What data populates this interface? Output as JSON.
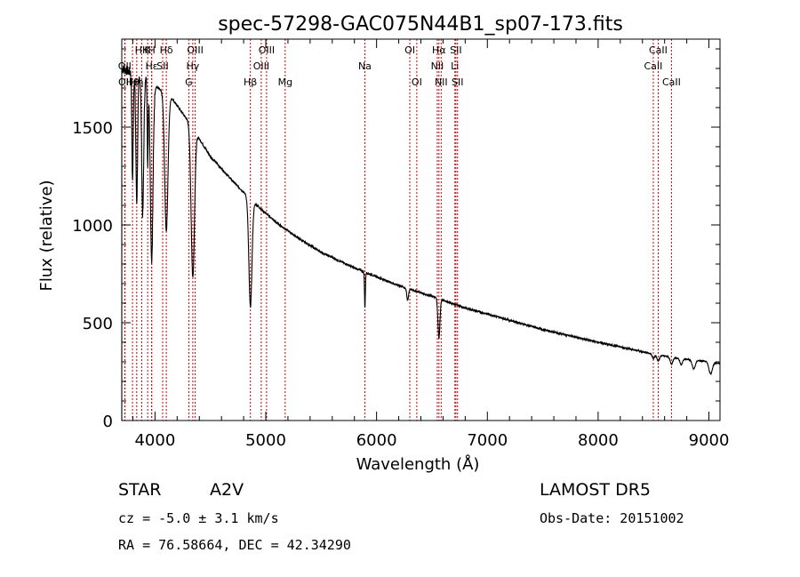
{
  "chart_data": {
    "type": "line",
    "title": "spec-57298-GAC075N44B1_sp07-173.fits",
    "xlabel": "Wavelength (Å)",
    "ylabel": "Flux (relative)",
    "xlim": [
      3700,
      9100
    ],
    "ylim": [
      0,
      1950
    ],
    "x_ticks": [
      4000,
      5000,
      6000,
      7000,
      8000,
      9000
    ],
    "y_ticks": [
      0,
      500,
      1000,
      1500
    ],
    "grid": false,
    "spectrum": {
      "continuum_anchors": [
        [
          3700,
          1800
        ],
        [
          3900,
          1750
        ],
        [
          4150,
          1650
        ],
        [
          4300,
          1530
        ],
        [
          4500,
          1350
        ],
        [
          4700,
          1225
        ],
        [
          4900,
          1110
        ],
        [
          5100,
          1010
        ],
        [
          5300,
          930
        ],
        [
          5500,
          860
        ],
        [
          5800,
          780
        ],
        [
          6000,
          735
        ],
        [
          6200,
          690
        ],
        [
          6500,
          635
        ],
        [
          6800,
          575
        ],
        [
          7000,
          545
        ],
        [
          7500,
          465
        ],
        [
          8000,
          400
        ],
        [
          8500,
          340
        ],
        [
          8700,
          320
        ],
        [
          9000,
          300
        ],
        [
          9100,
          290
        ]
      ],
      "absorption_lines": [
        {
          "center": 3797,
          "depth": 550,
          "width": 6
        },
        {
          "center": 3835,
          "depth": 650,
          "width": 8
        },
        {
          "center": 3889,
          "depth": 700,
          "width": 9
        },
        {
          "center": 3934,
          "depth": 450,
          "width": 4
        },
        {
          "center": 3970,
          "depth": 900,
          "width": 12
        },
        {
          "center": 4102,
          "depth": 700,
          "width": 15
        },
        {
          "center": 4341,
          "depth": 760,
          "width": 15
        },
        {
          "center": 4861,
          "depth": 550,
          "width": 14
        },
        {
          "center": 5895,
          "depth": 180,
          "width": 4
        },
        {
          "center": 6280,
          "depth": 60,
          "width": 8
        },
        {
          "center": 6563,
          "depth": 200,
          "width": 9
        },
        {
          "center": 8498,
          "depth": 25,
          "width": 10
        },
        {
          "center": 8542,
          "depth": 30,
          "width": 12
        },
        {
          "center": 8662,
          "depth": 35,
          "width": 12
        },
        {
          "center": 8750,
          "depth": 30,
          "width": 12
        },
        {
          "center": 8863,
          "depth": 45,
          "width": 14
        },
        {
          "center": 9015,
          "depth": 60,
          "width": 15
        }
      ]
    },
    "line_markers": [
      {
        "label": "OII",
        "wavelength": 3727,
        "row": 2
      },
      {
        "label": "OII",
        "wavelength": 3729,
        "row": 3
      },
      {
        "label": "Hθ",
        "wavelength": 3797,
        "row": 3
      },
      {
        "label": "Hη",
        "wavelength": 3835,
        "row": 3
      },
      {
        "label": "HK",
        "wavelength": 3880,
        "row": 1
      },
      {
        "label": "K",
        "wavelength": 3934,
        "row": 1
      },
      {
        "label": "H",
        "wavelength": 3970,
        "row": 1
      },
      {
        "label": "Hε",
        "wavelength": 3970,
        "row": 2
      },
      {
        "label": "SII",
        "wavelength": 4069,
        "row": 2
      },
      {
        "label": "Hδ",
        "wavelength": 4102,
        "row": 1
      },
      {
        "label": "G",
        "wavelength": 4305,
        "row": 3
      },
      {
        "label": "Hγ",
        "wavelength": 4341,
        "row": 2
      },
      {
        "label": "OIII",
        "wavelength": 4363,
        "row": 1
      },
      {
        "label": "Hβ",
        "wavelength": 4861,
        "row": 3
      },
      {
        "label": "OIII",
        "wavelength": 4959,
        "row": 2
      },
      {
        "label": "OIII",
        "wavelength": 5007,
        "row": 1
      },
      {
        "label": "Mg",
        "wavelength": 5175,
        "row": 3
      },
      {
        "label": "Na",
        "wavelength": 5894,
        "row": 2
      },
      {
        "label": "OI",
        "wavelength": 6300,
        "row": 1
      },
      {
        "label": "OI",
        "wavelength": 6363,
        "row": 3
      },
      {
        "label": "NII",
        "wavelength": 6548,
        "row": 2
      },
      {
        "label": "Hα",
        "wavelength": 6563,
        "row": 1
      },
      {
        "label": "NII",
        "wavelength": 6583,
        "row": 3
      },
      {
        "label": "Li",
        "wavelength": 6707,
        "row": 2
      },
      {
        "label": "SII",
        "wavelength": 6716,
        "row": 1
      },
      {
        "label": "SII",
        "wavelength": 6731,
        "row": 3
      },
      {
        "label": "CaII",
        "wavelength": 8498,
        "row": 2
      },
      {
        "label": "CaII",
        "wavelength": 8542,
        "row": 1
      },
      {
        "label": "CaII",
        "wavelength": 8662,
        "row": 3
      }
    ]
  },
  "footer": {
    "object_class": "STAR",
    "subclass": "A2V",
    "survey": "LAMOST DR5",
    "redshift": "cz = -5.0 ± 3.1 km/s",
    "obs_date": "Obs-Date: 20151002",
    "coords": "RA =  76.58664, DEC =  42.34290"
  },
  "colors": {
    "spectrum": "#000000",
    "marker_line": "#cc0000",
    "axes": "#000000"
  }
}
